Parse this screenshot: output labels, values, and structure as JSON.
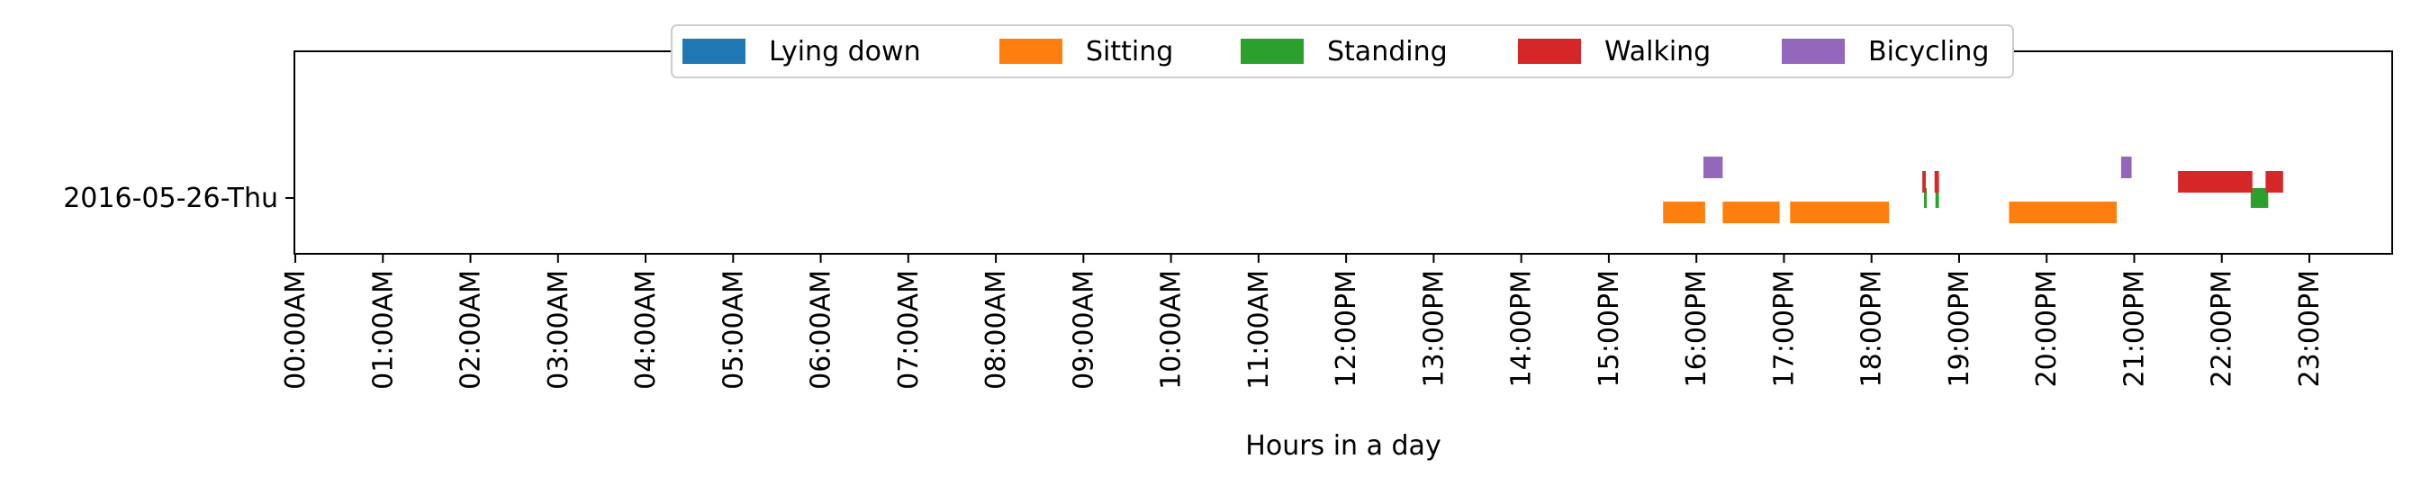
{
  "chart_data": {
    "type": "bar",
    "orientation": "horizontal-timeline",
    "title": "",
    "xlabel": "Hours in a day",
    "ylabel": "",
    "xlim": [
      0,
      24
    ],
    "grid": false,
    "legend_placement": "top-center",
    "days": [
      "2016-05-26-Thu"
    ],
    "x_tick_labels": [
      "00:00AM",
      "01:00AM",
      "02:00AM",
      "03:00AM",
      "04:00AM",
      "05:00AM",
      "06:00AM",
      "07:00AM",
      "08:00AM",
      "09:00AM",
      "10:00AM",
      "11:00AM",
      "12:00PM",
      "13:00PM",
      "14:00PM",
      "15:00PM",
      "16:00PM",
      "17:00PM",
      "18:00PM",
      "19:00PM",
      "20:00PM",
      "21:00PM",
      "22:00PM",
      "23:00PM"
    ],
    "series": [
      {
        "name": "Lying down",
        "color": "#1f77b4",
        "intervals": []
      },
      {
        "name": "Sitting",
        "color": "#ff7f0e",
        "intervals": [
          [
            15.62,
            16.1
          ],
          [
            16.3,
            16.95
          ],
          [
            17.07,
            18.2
          ],
          [
            19.57,
            20.8
          ]
        ]
      },
      {
        "name": "Standing",
        "color": "#2ca02c",
        "intervals": [
          [
            18.6,
            18.63
          ],
          [
            18.73,
            18.77
          ],
          [
            22.33,
            22.53
          ]
        ]
      },
      {
        "name": "Walking",
        "color": "#d62728",
        "intervals": [
          [
            18.58,
            18.62
          ],
          [
            18.72,
            18.77
          ],
          [
            21.5,
            22.35
          ],
          [
            22.5,
            22.7
          ]
        ]
      },
      {
        "name": "Bicycling",
        "color": "#9467bd",
        "intervals": [
          [
            16.08,
            16.3
          ],
          [
            20.85,
            20.97
          ]
        ]
      }
    ]
  }
}
